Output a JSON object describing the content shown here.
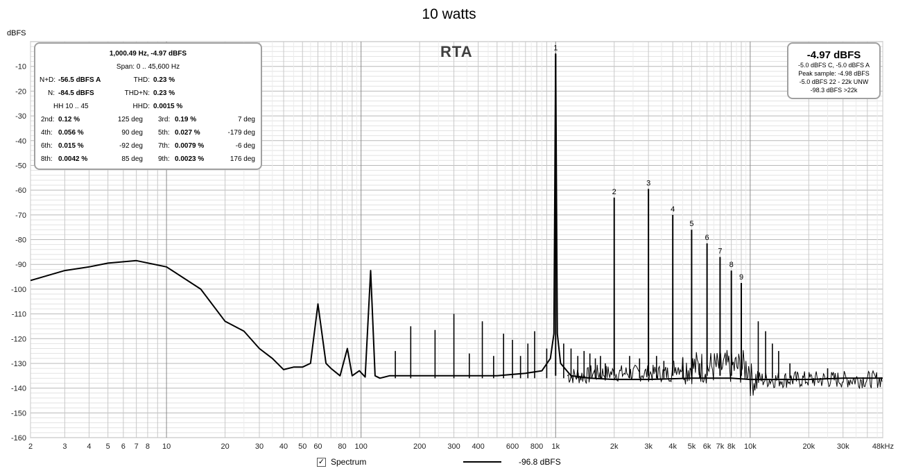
{
  "title": "10 watts",
  "ylabel": "dBFS",
  "rta_label": "RTA",
  "stats": {
    "header1": "1,000.49 Hz, -4.97 dBFS",
    "header2": "Span: 0 .. 45,600 Hz",
    "nd_label": "N+D:",
    "nd_value": "-56.5 dBFS A",
    "thd_label": "THD:",
    "thd_value": "0.23 %",
    "n_label": "N:",
    "n_value": "-84.5 dBFS",
    "thdn_label": "THD+N:",
    "thdn_value": "0.23 %",
    "hh_label": "HH 10 .. 45",
    "hhd_label": "HHD:",
    "hhd_value": "0.0015 %",
    "harmonics": [
      {
        "label": "2nd:",
        "value": "0.12 %",
        "phase": "125 deg"
      },
      {
        "label": "3rd:",
        "value": "0.19 %",
        "phase": "7 deg"
      },
      {
        "label": "4th:",
        "value": "0.056 %",
        "phase": "90 deg"
      },
      {
        "label": "5th:",
        "value": "0.027 %",
        "phase": "-179 deg"
      },
      {
        "label": "6th:",
        "value": "0.015 %",
        "phase": "-92 deg"
      },
      {
        "label": "7th:",
        "value": "0.0079 %",
        "phase": "-6 deg"
      },
      {
        "label": "8th:",
        "value": "0.0042 %",
        "phase": "85 deg"
      },
      {
        "label": "9th:",
        "value": "0.0023 %",
        "phase": "176 deg"
      }
    ]
  },
  "level": {
    "main": "-4.97 dBFS",
    "line1": "-5.0 dBFS C, -5.0 dBFS A",
    "line2": "Peak sample: -4.98 dBFS",
    "line3": "-5.0 dBFS 22 - 22k UNW",
    "line4": "-98.3 dBFS >22k"
  },
  "legend": {
    "spectrum_label": "Spectrum",
    "spectrum_checked": "✓",
    "level_value": "-96.8 dBFS"
  },
  "chart_data": {
    "type": "line",
    "x_scale": "log",
    "xlim": [
      2,
      48000
    ],
    "ylim": [
      -160,
      0
    ],
    "grid": true,
    "x_ticks": [
      {
        "v": 2,
        "label": "2"
      },
      {
        "v": 3,
        "label": "3"
      },
      {
        "v": 4,
        "label": "4"
      },
      {
        "v": 5,
        "label": "5"
      },
      {
        "v": 6,
        "label": "6"
      },
      {
        "v": 7,
        "label": "7"
      },
      {
        "v": 8,
        "label": "8"
      },
      {
        "v": 10,
        "label": "10"
      },
      {
        "v": 20,
        "label": "20"
      },
      {
        "v": 30,
        "label": "30"
      },
      {
        "v": 40,
        "label": "40"
      },
      {
        "v": 50,
        "label": "50"
      },
      {
        "v": 60,
        "label": "60"
      },
      {
        "v": 80,
        "label": "80"
      },
      {
        "v": 100,
        "label": "100"
      },
      {
        "v": 200,
        "label": "200"
      },
      {
        "v": 300,
        "label": "300"
      },
      {
        "v": 400,
        "label": "400"
      },
      {
        "v": 600,
        "label": "600"
      },
      {
        "v": 800,
        "label": "800"
      },
      {
        "v": 1000,
        "label": "1k"
      },
      {
        "v": 2000,
        "label": "2k"
      },
      {
        "v": 3000,
        "label": "3k"
      },
      {
        "v": 4000,
        "label": "4k"
      },
      {
        "v": 5000,
        "label": "5k"
      },
      {
        "v": 6000,
        "label": "6k"
      },
      {
        "v": 7000,
        "label": "7k"
      },
      {
        "v": 8000,
        "label": "8k"
      },
      {
        "v": 10000,
        "label": "10k"
      },
      {
        "v": 20000,
        "label": "20k"
      },
      {
        "v": 30000,
        "label": "30k"
      },
      {
        "v": 48000,
        "label": "48kHz"
      }
    ],
    "y_ticks": [
      "-10",
      "-20",
      "-30",
      "-40",
      "-50",
      "-60",
      "-70",
      "-80",
      "-90",
      "-100",
      "-110",
      "-120",
      "-130",
      "-140",
      "-150",
      "-160"
    ],
    "harmonic_markers": [
      {
        "label": "1",
        "x": 1000,
        "y": -4.97
      },
      {
        "label": "2",
        "x": 2000,
        "y": -63
      },
      {
        "label": "3",
        "x": 3000,
        "y": -59.5
      },
      {
        "label": "4",
        "x": 4000,
        "y": -70
      },
      {
        "label": "5",
        "x": 5000,
        "y": -76
      },
      {
        "label": "6",
        "x": 6000,
        "y": -81.5
      },
      {
        "label": "7",
        "x": 7000,
        "y": -87
      },
      {
        "label": "8",
        "x": 8000,
        "y": -92.5
      },
      {
        "label": "9",
        "x": 9000,
        "y": -97.5
      }
    ],
    "series": [
      {
        "x": [
          2,
          3,
          4,
          5,
          7,
          10,
          15,
          20,
          25,
          30,
          35,
          40,
          45,
          50,
          55,
          60,
          66,
          70,
          78,
          85,
          90,
          98,
          105,
          112,
          118,
          125,
          140,
          160,
          200,
          300,
          500,
          700,
          850,
          940,
          980,
          1000,
          1020,
          1060,
          1200,
          1500,
          2000,
          3000,
          5000,
          8000,
          10000,
          15000,
          20000,
          30000,
          48000
        ],
        "y": [
          -96.5,
          -92.5,
          -91,
          -89.5,
          -88.5,
          -91,
          -100,
          -113,
          -117,
          -124,
          -128,
          -132.5,
          -131.5,
          -131.5,
          -130,
          -106,
          -130,
          -132,
          -135,
          -124,
          -135,
          -133,
          -135.5,
          -92.5,
          -135,
          -136,
          -135,
          -135,
          -135,
          -135,
          -135,
          -134,
          -133,
          -128,
          -118,
          -4.97,
          -118,
          -130,
          -135,
          -136,
          -136.5,
          -136.5,
          -136,
          -136,
          -136.5,
          -136.5,
          -136.5,
          -136,
          -136
        ]
      }
    ],
    "spurs": [
      {
        "x": 150,
        "y": -125
      },
      {
        "x": 180,
        "y": -115
      },
      {
        "x": 240,
        "y": -116.5
      },
      {
        "x": 300,
        "y": -110
      },
      {
        "x": 360,
        "y": -126
      },
      {
        "x": 420,
        "y": -113
      },
      {
        "x": 480,
        "y": -127
      },
      {
        "x": 540,
        "y": -118
      },
      {
        "x": 600,
        "y": -120.5
      },
      {
        "x": 660,
        "y": -127
      },
      {
        "x": 720,
        "y": -122
      },
      {
        "x": 780,
        "y": -117
      },
      {
        "x": 900,
        "y": -124
      },
      {
        "x": 1100,
        "y": -122
      },
      {
        "x": 1200,
        "y": -124
      },
      {
        "x": 1300,
        "y": -127
      },
      {
        "x": 1400,
        "y": -125
      },
      {
        "x": 1500,
        "y": -126
      },
      {
        "x": 1600,
        "y": -128
      },
      {
        "x": 1700,
        "y": -127
      },
      {
        "x": 1800,
        "y": -130
      },
      {
        "x": 2400,
        "y": -127
      },
      {
        "x": 2700,
        "y": -128
      },
      {
        "x": 3300,
        "y": -127
      },
      {
        "x": 3600,
        "y": -129
      },
      {
        "x": 4500,
        "y": -128
      },
      {
        "x": 5500,
        "y": -130
      },
      {
        "x": 11000,
        "y": -113
      },
      {
        "x": 12000,
        "y": -117
      },
      {
        "x": 13000,
        "y": -122
      },
      {
        "x": 14000,
        "y": -125
      },
      {
        "x": 16000,
        "y": -130
      },
      {
        "x": 25000,
        "y": -132
      }
    ]
  }
}
